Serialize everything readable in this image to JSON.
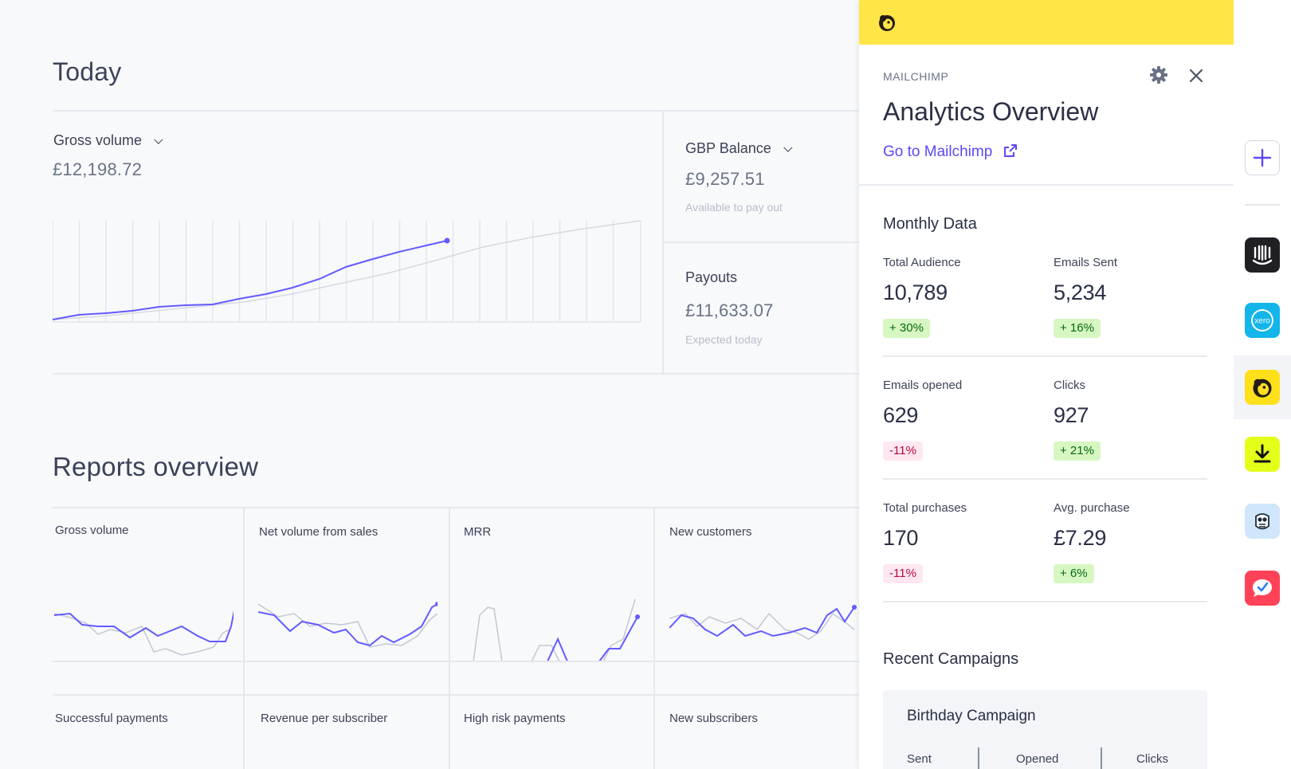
{
  "dashboard": {
    "today_title": "Today",
    "gross_volume": {
      "label": "Gross volume",
      "value": "£12,198.72"
    },
    "gbp_balance": {
      "label": "GBP Balance",
      "value": "£9,257.51",
      "sub": "Available to pay out"
    },
    "payouts": {
      "label": "Payouts",
      "value": "£11,633.07",
      "sub": "Expected today"
    },
    "reports_title": "Reports overview",
    "tiles": [
      "Gross volume",
      "Net volume from sales",
      "MRR",
      "New customers",
      "Successful payments",
      "Revenue per subscriber",
      "High risk payments",
      "New subscribers"
    ]
  },
  "panel": {
    "app_name": "MAILCHIMP",
    "title": "Analytics Overview",
    "link": "Go to Mailchimp",
    "monthly_title": "Monthly Data",
    "stats": [
      {
        "label": "Total Audience",
        "value": "10,789",
        "change": "+ 30%",
        "trend": "up"
      },
      {
        "label": "Emails Sent",
        "value": "5,234",
        "change": "+ 16%",
        "trend": "up"
      },
      {
        "label": "Emails opened",
        "value": "629",
        "change": "-11%",
        "trend": "down"
      },
      {
        "label": "Clicks",
        "value": "927",
        "change": "+ 21%",
        "trend": "up"
      },
      {
        "label": "Total purchases",
        "value": "170",
        "change": "-11%",
        "trend": "down"
      },
      {
        "label": "Avg. purchase",
        "value": "£7.29",
        "change": "+ 6%",
        "trend": "up"
      }
    ],
    "recent_title": "Recent Campaigns",
    "campaign": {
      "title": "Birthday Campaign",
      "cols": [
        "Sent",
        "Opened",
        "Clicks"
      ]
    }
  },
  "colors": {
    "accent": "#635bff",
    "mailchimp_yellow": "#ffe545",
    "positive_bg": "#d7f7c2",
    "negative_bg": "#ffe7f2"
  },
  "rail_icons": [
    "plus-icon",
    "intercom-icon",
    "xero-icon",
    "mailchimp-icon",
    "download-icon",
    "owl-icon",
    "check-chat-icon"
  ]
}
